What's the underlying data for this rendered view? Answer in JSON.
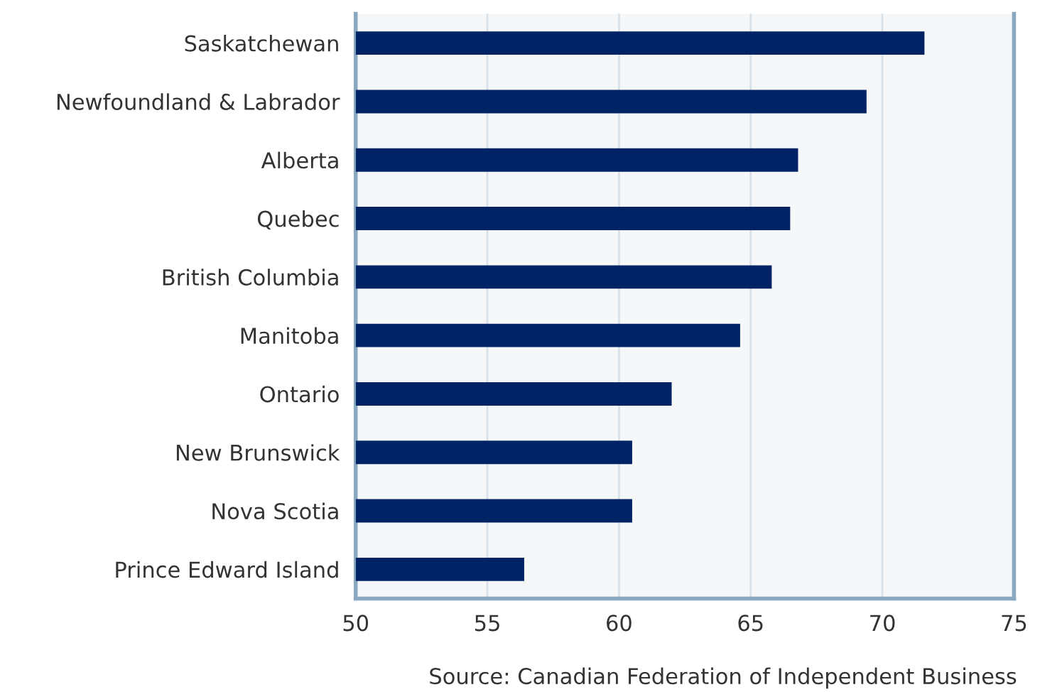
{
  "chart_data": {
    "type": "bar",
    "orientation": "horizontal",
    "categories": [
      "Saskatchewan",
      "Newfoundland & Labrador",
      "Alberta",
      "Quebec",
      "British Columbia",
      "Manitoba",
      "Ontario",
      "New Brunswick",
      "Nova Scotia",
      "Prince Edward Island"
    ],
    "values": [
      71.6,
      69.4,
      66.8,
      66.5,
      65.8,
      64.6,
      62.0,
      60.5,
      60.5,
      56.4
    ],
    "color": "#002366",
    "xlim": [
      50,
      75
    ],
    "xticks": [
      50,
      55,
      60,
      65,
      70,
      75
    ],
    "grid": "x",
    "annotations": [
      "Source: Canadian Federation of Independent Business"
    ]
  }
}
